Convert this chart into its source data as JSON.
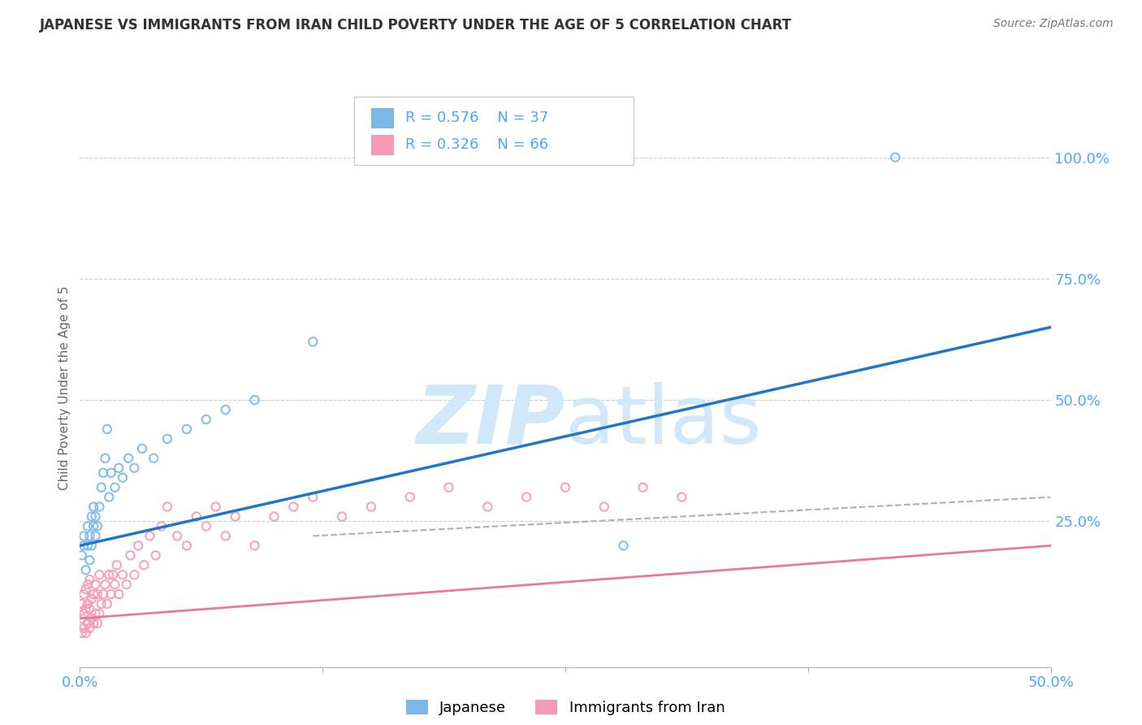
{
  "title": "JAPANESE VS IMMIGRANTS FROM IRAN CHILD POVERTY UNDER THE AGE OF 5 CORRELATION CHART",
  "source": "Source: ZipAtlas.com",
  "ylabel": "Child Poverty Under the Age of 5",
  "xlim": [
    0.0,
    0.5
  ],
  "ylim": [
    -0.05,
    1.1
  ],
  "ytick_positions": [
    0.25,
    0.5,
    0.75,
    1.0
  ],
  "ytick_labels": [
    "25.0%",
    "50.0%",
    "75.0%",
    "100.0%"
  ],
  "grid_color": "#cccccc",
  "background_color": "#ffffff",
  "title_color": "#333333",
  "axis_color": "#4da6ff",
  "watermark_color": "#d0e8f8",
  "legend_r1": "R = 0.576",
  "legend_n1": "N = 37",
  "legend_r2": "R = 0.326",
  "legend_n2": "N = 66",
  "legend_label1": "Japanese",
  "legend_label2": "Immigrants from Iran",
  "scatter_color1": "#7ab8e8",
  "scatter_color2": "#f599b4",
  "trend_color1": "#2176c7",
  "trend_color2": "#e8799a",
  "trend_color2_dashed": "#b0b0b0",
  "japanese_x": [
    0.001,
    0.002,
    0.002,
    0.003,
    0.004,
    0.004,
    0.005,
    0.005,
    0.006,
    0.006,
    0.007,
    0.007,
    0.008,
    0.008,
    0.009,
    0.01,
    0.011,
    0.012,
    0.013,
    0.014,
    0.015,
    0.016,
    0.018,
    0.02,
    0.022,
    0.025,
    0.028,
    0.032,
    0.038,
    0.045,
    0.055,
    0.065,
    0.075,
    0.09,
    0.12,
    0.28,
    0.42
  ],
  "japanese_y": [
    0.18,
    0.2,
    0.22,
    0.15,
    0.2,
    0.24,
    0.17,
    0.22,
    0.2,
    0.26,
    0.24,
    0.28,
    0.22,
    0.26,
    0.24,
    0.28,
    0.32,
    0.35,
    0.38,
    0.44,
    0.3,
    0.35,
    0.32,
    0.36,
    0.34,
    0.38,
    0.36,
    0.4,
    0.38,
    0.42,
    0.44,
    0.46,
    0.48,
    0.5,
    0.62,
    0.2,
    1.0
  ],
  "iran_x": [
    0.001,
    0.001,
    0.001,
    0.002,
    0.002,
    0.002,
    0.003,
    0.003,
    0.003,
    0.004,
    0.004,
    0.004,
    0.005,
    0.005,
    0.005,
    0.006,
    0.006,
    0.007,
    0.007,
    0.008,
    0.008,
    0.009,
    0.009,
    0.01,
    0.01,
    0.011,
    0.012,
    0.013,
    0.014,
    0.015,
    0.016,
    0.017,
    0.018,
    0.019,
    0.02,
    0.022,
    0.024,
    0.026,
    0.028,
    0.03,
    0.033,
    0.036,
    0.039,
    0.042,
    0.045,
    0.05,
    0.055,
    0.06,
    0.065,
    0.07,
    0.075,
    0.08,
    0.09,
    0.1,
    0.11,
    0.12,
    0.135,
    0.15,
    0.17,
    0.19,
    0.21,
    0.23,
    0.25,
    0.27,
    0.29,
    0.31
  ],
  "iran_y": [
    0.02,
    0.05,
    0.08,
    0.03,
    0.06,
    0.1,
    0.02,
    0.07,
    0.11,
    0.04,
    0.08,
    0.12,
    0.03,
    0.07,
    0.13,
    0.05,
    0.09,
    0.04,
    0.1,
    0.06,
    0.12,
    0.04,
    0.1,
    0.06,
    0.14,
    0.08,
    0.1,
    0.12,
    0.08,
    0.14,
    0.1,
    0.14,
    0.12,
    0.16,
    0.1,
    0.14,
    0.12,
    0.18,
    0.14,
    0.2,
    0.16,
    0.22,
    0.18,
    0.24,
    0.28,
    0.22,
    0.2,
    0.26,
    0.24,
    0.28,
    0.22,
    0.26,
    0.2,
    0.26,
    0.28,
    0.3,
    0.26,
    0.28,
    0.3,
    0.32,
    0.28,
    0.3,
    0.32,
    0.28,
    0.32,
    0.3
  ]
}
